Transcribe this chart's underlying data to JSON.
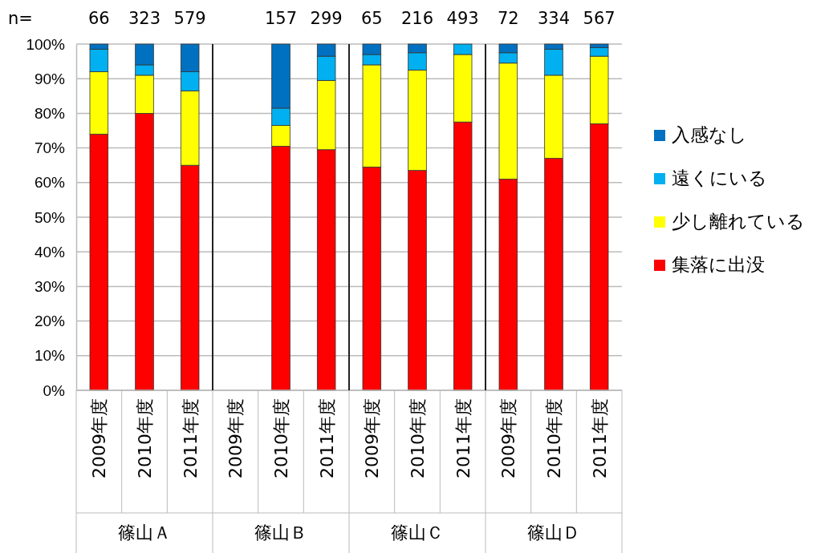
{
  "chart_data": {
    "type": "bar",
    "stacked": true,
    "categories": [
      "2009年度",
      "2010年度",
      "2011年度",
      "2009年度",
      "2010年度",
      "2011年度",
      "2009年度",
      "2010年度",
      "2011年度",
      "2009年度",
      "2010年度",
      "2011年度"
    ],
    "series": [
      {
        "name": "集落に出没",
        "color": "#ff0000",
        "values": [
          74,
          80,
          65,
          null,
          70.5,
          69.5,
          64.5,
          63.5,
          77.5,
          61,
          67,
          77
        ]
      },
      {
        "name": "少し離れている",
        "color": "#ffff00",
        "values": [
          18,
          11,
          21.5,
          null,
          6,
          20,
          29.5,
          29,
          19.5,
          33.5,
          24,
          19.5
        ]
      },
      {
        "name": "遠くにいる",
        "color": "#00b0f0",
        "values": [
          6.5,
          3,
          5.5,
          null,
          5,
          7,
          3,
          5,
          3,
          3,
          7.5,
          2.5
        ]
      },
      {
        "name": "入感なし",
        "color": "#0070c0",
        "values": [
          1.5,
          6,
          8,
          null,
          18.5,
          3.5,
          3,
          2.5,
          0,
          2.5,
          1.5,
          1
        ]
      }
    ],
    "annotations": [
      "n=",
      "66",
      "323",
      "579",
      "157",
      "299",
      "65",
      "216",
      "493",
      "72",
      "334",
      "567",
      "篠山Ａ",
      "篠山Ｂ",
      "篠山Ｃ",
      "篠山Ｄ"
    ],
    "ylim": [
      0,
      100
    ],
    "yticks": [
      {
        "value": 0,
        "label": "0%"
      },
      {
        "value": 10,
        "label": "10%"
      },
      {
        "value": 20,
        "label": "20%"
      },
      {
        "value": 30,
        "label": "30%"
      },
      {
        "value": 40,
        "label": "40%"
      },
      {
        "value": 50,
        "label": "50%"
      },
      {
        "value": 60,
        "label": "60%"
      },
      {
        "value": 70,
        "label": "70%"
      },
      {
        "value": 80,
        "label": "80%"
      },
      {
        "value": 90,
        "label": "90%"
      },
      {
        "value": 100,
        "label": "100%"
      }
    ],
    "grid": "y",
    "legend": "right"
  }
}
